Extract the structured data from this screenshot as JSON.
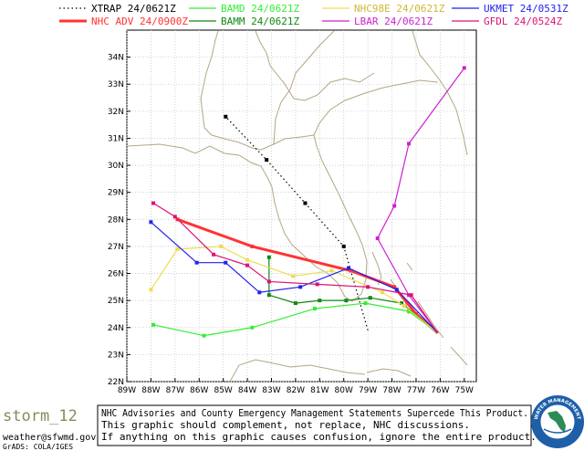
{
  "chart_data": {
    "type": "line",
    "xlim": [
      -89,
      -74.5
    ],
    "ylim": [
      22,
      35
    ],
    "x_ticks": [
      "89W",
      "88W",
      "87W",
      "86W",
      "85W",
      "84W",
      "83W",
      "82W",
      "81W",
      "80W",
      "79W",
      "78W",
      "77W",
      "76W",
      "75W"
    ],
    "y_ticks": [
      "22N",
      "23N",
      "24N",
      "25N",
      "26N",
      "27N",
      "28N",
      "29N",
      "30N",
      "31N",
      "32N",
      "33N",
      "34N"
    ],
    "grid": true,
    "series": [
      {
        "name": "XTRAP",
        "time": "24/0621Z",
        "color": "#000000",
        "style": "dotted",
        "points": [
          [
            -79.0,
            23.9
          ],
          [
            -80.0,
            27.0
          ],
          [
            -81.6,
            28.6
          ],
          [
            -83.2,
            30.2
          ],
          [
            -84.9,
            31.8
          ]
        ]
      },
      {
        "name": "NHC ADV",
        "time": "24/0900Z",
        "color": "#ff3333",
        "style": "thick",
        "points": [
          [
            -76.1,
            23.8
          ],
          [
            -77.0,
            24.5
          ],
          [
            -77.9,
            25.5
          ],
          [
            -79.7,
            26.1
          ],
          [
            -83.8,
            27.0
          ],
          [
            -86.9,
            28.0
          ]
        ]
      },
      {
        "name": "BAMD",
        "time": "24/0621Z",
        "color": "#33ee33",
        "style": "solid",
        "points": [
          [
            -76.1,
            23.8
          ],
          [
            -77.3,
            24.6
          ],
          [
            -79.1,
            24.9
          ],
          [
            -81.2,
            24.7
          ],
          [
            -83.8,
            24.0
          ],
          [
            -85.8,
            23.7
          ],
          [
            -87.9,
            24.1
          ]
        ]
      },
      {
        "name": "BAMM",
        "time": "24/0621Z",
        "color": "#118811",
        "style": "solid",
        "points": [
          [
            -76.1,
            23.8
          ],
          [
            -77.6,
            24.9
          ],
          [
            -78.9,
            25.1
          ],
          [
            -79.9,
            25.0
          ],
          [
            -81.0,
            25.0
          ],
          [
            -82.0,
            24.9
          ],
          [
            -83.1,
            25.2
          ],
          [
            -83.1,
            26.6
          ]
        ]
      },
      {
        "name": "NHC98E",
        "time": "24/0621Z",
        "color": "#eedd55",
        "style": "solid",
        "points": [
          [
            -76.1,
            23.8
          ],
          [
            -77.5,
            24.8
          ],
          [
            -78.4,
            25.3
          ],
          [
            -80.5,
            26.1
          ],
          [
            -82.1,
            25.9
          ],
          [
            -84.0,
            26.5
          ],
          [
            -85.1,
            27.0
          ],
          [
            -86.9,
            26.9
          ],
          [
            -88.0,
            25.4
          ]
        ]
      },
      {
        "name": "LBAR",
        "time": "24/0621Z",
        "color": "#cc22cc",
        "style": "solid",
        "points": [
          [
            -76.1,
            23.8
          ],
          [
            -77.3,
            25.2
          ],
          [
            -78.6,
            27.3
          ],
          [
            -77.9,
            28.5
          ],
          [
            -77.3,
            30.8
          ],
          [
            -75.0,
            33.6
          ]
        ]
      },
      {
        "name": "UKMET",
        "time": "24/0531Z",
        "color": "#2222ee",
        "style": "solid",
        "points": [
          [
            -76.1,
            23.8
          ],
          [
            -77.8,
            25.4
          ],
          [
            -79.8,
            26.2
          ],
          [
            -81.8,
            25.5
          ],
          [
            -83.5,
            25.3
          ],
          [
            -84.9,
            26.4
          ],
          [
            -86.1,
            26.4
          ],
          [
            -88.0,
            27.9
          ]
        ]
      },
      {
        "name": "GFDL",
        "time": "24/0524Z",
        "color": "#dd1177",
        "style": "solid",
        "points": [
          [
            -76.1,
            23.8
          ],
          [
            -77.2,
            25.2
          ],
          [
            -79.0,
            25.5
          ],
          [
            -81.1,
            25.6
          ],
          [
            -83.1,
            25.7
          ],
          [
            -84.0,
            26.3
          ],
          [
            -85.4,
            26.7
          ],
          [
            -87.0,
            28.1
          ],
          [
            -87.9,
            28.6
          ]
        ]
      }
    ]
  },
  "branding": {
    "storm_name": "storm_12",
    "email": "weather@sfwmd.gov",
    "grads": "GrADS: COLA/IGES",
    "disclaimer": [
      "NHC Advisories and County Emergency Management Statements Supercede This Product.",
      "This graphic should complement, not replace, NHC discussions.",
      "If anything on this graphic causes confusion, ignore the entire product."
    ],
    "seal_top": "WATER MANAGEMENT",
    "seal_left": "SOUTH FLORIDA",
    "seal_right": "DISTRICT"
  },
  "colors": {
    "coast": "#b3a781"
  }
}
